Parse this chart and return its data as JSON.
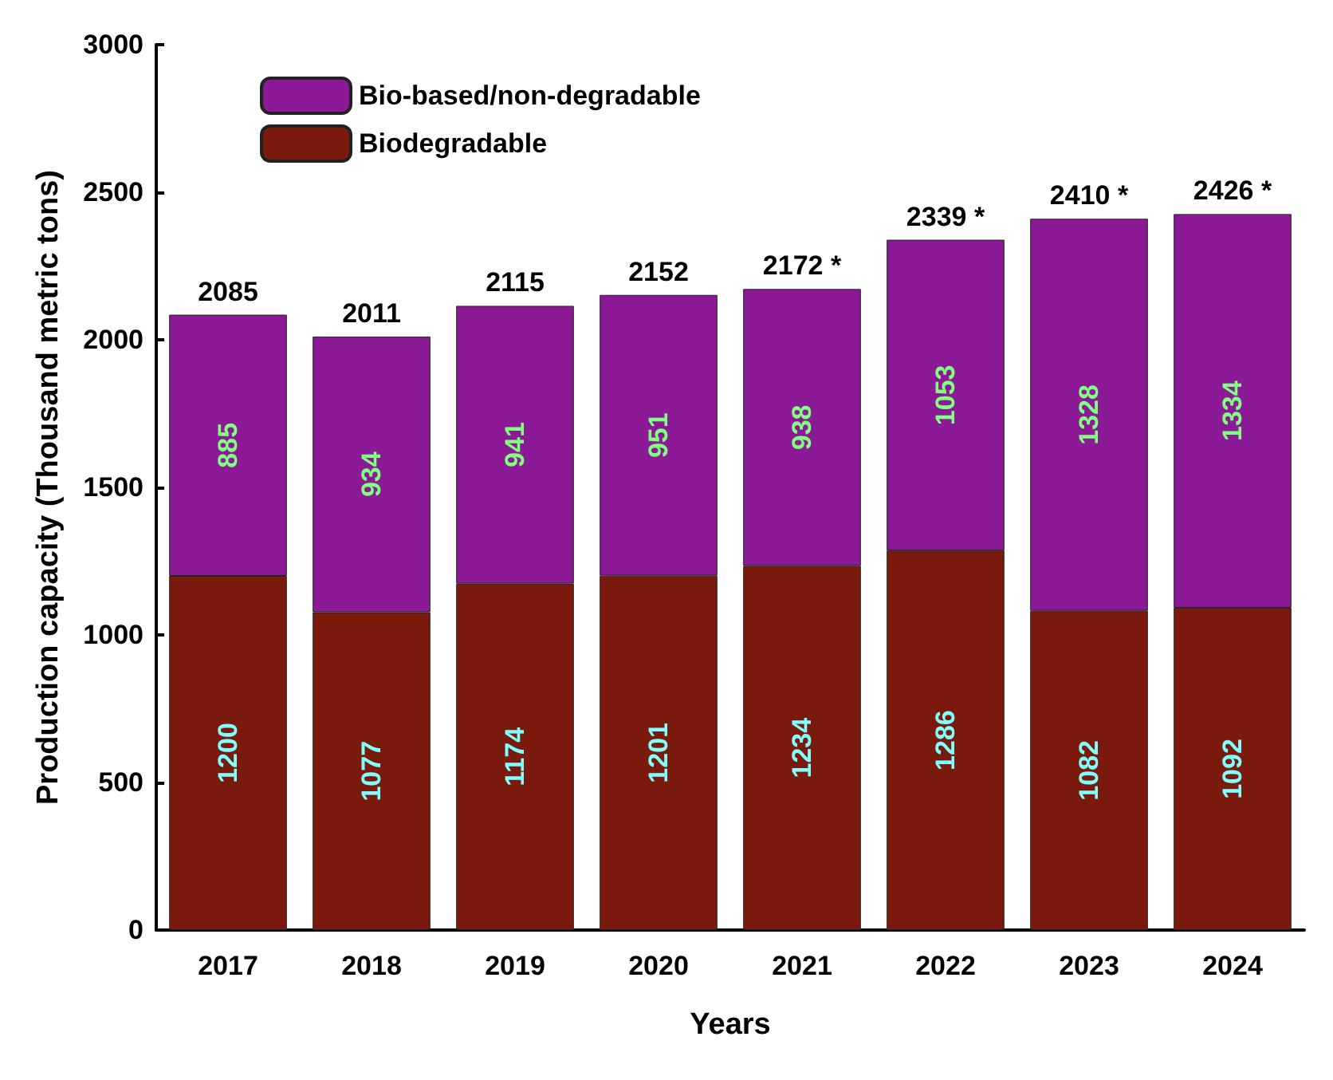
{
  "chart_data": {
    "type": "bar",
    "stacked": true,
    "xlabel": "Years",
    "ylabel": "Production capacity (Thousand metric tons)",
    "categories": [
      "2017",
      "2018",
      "2019",
      "2020",
      "2021",
      "2022",
      "2023",
      "2024"
    ],
    "series": [
      {
        "name": "Biodegradable",
        "color": "#7a1a0c",
        "values": [
          1200,
          1077,
          1174,
          1201,
          1234,
          1286,
          1082,
          1092
        ]
      },
      {
        "name": "Bio-based/non-degradable",
        "color": "#8c1a96",
        "values": [
          885,
          934,
          941,
          951,
          938,
          1053,
          1328,
          1334
        ]
      }
    ],
    "totals": [
      "2085",
      "2011",
      "2115",
      "2152",
      "2172 *",
      "2339 *",
      "2410 *",
      "2426 *"
    ],
    "ylim": [
      0,
      3000
    ],
    "yticks": [
      0,
      500,
      1000,
      1500,
      2000,
      2500,
      3000
    ],
    "data_labels": true,
    "legend": "top left",
    "grid": false
  }
}
